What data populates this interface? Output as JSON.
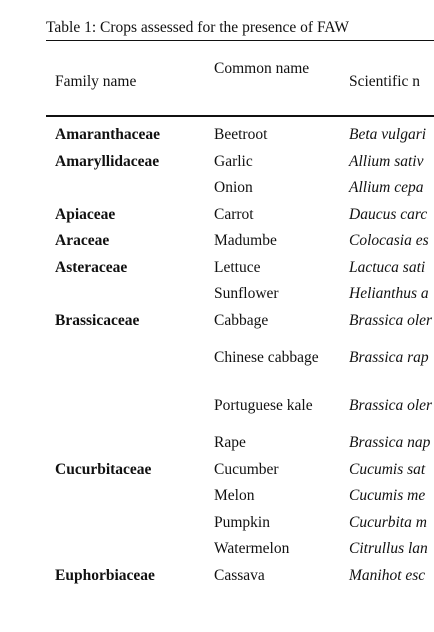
{
  "caption": "Table 1: Crops assessed for the presence of FAW",
  "headers": {
    "family": "Family name",
    "common": "Common name",
    "scientific": "Scientific n"
  },
  "rows": [
    {
      "family": "Amaranthaceae",
      "common": "Beetroot",
      "scientific": "Beta vulgari"
    },
    {
      "family": "Amaryllidaceae",
      "common": "Garlic",
      "scientific": "Allium sativ"
    },
    {
      "family": "",
      "common": "Onion",
      "scientific": "Allium cepa"
    },
    {
      "family": "Apiaceae",
      "common": "Carrot",
      "scientific": "Daucus carc"
    },
    {
      "family": "Araceae",
      "common": "Madumbe",
      "scientific": "Colocasia es"
    },
    {
      "family": "Asteraceae",
      "common": "Lettuce",
      "scientific": "Lactuca sati"
    },
    {
      "family": "",
      "common": "Sunflower",
      "scientific": "Helianthus a"
    },
    {
      "family": "Brassicaceae",
      "common": "Cabbage",
      "scientific": "Brassica oler"
    },
    {
      "family": "",
      "common": "Chinese cabbage",
      "scientific": "Brassica rap"
    },
    {
      "family": "",
      "common": "Portuguese kale",
      "scientific": "Brassica oler"
    },
    {
      "family": "",
      "common": "Rape",
      "scientific": "Brassica nap"
    },
    {
      "family": "Cucurbitaceae",
      "common": "Cucumber",
      "scientific": "Cucumis sat"
    },
    {
      "family": "",
      "common": "Melon",
      "scientific": "Cucumis me"
    },
    {
      "family": "",
      "common": "Pumpkin",
      "scientific": "Cucurbita m"
    },
    {
      "family": "",
      "common": "Watermelon",
      "scientific": "Citrullus lan"
    },
    {
      "family": "Euphorbiaceae",
      "common": "Cassava",
      "scientific": "Manihot esc"
    }
  ]
}
